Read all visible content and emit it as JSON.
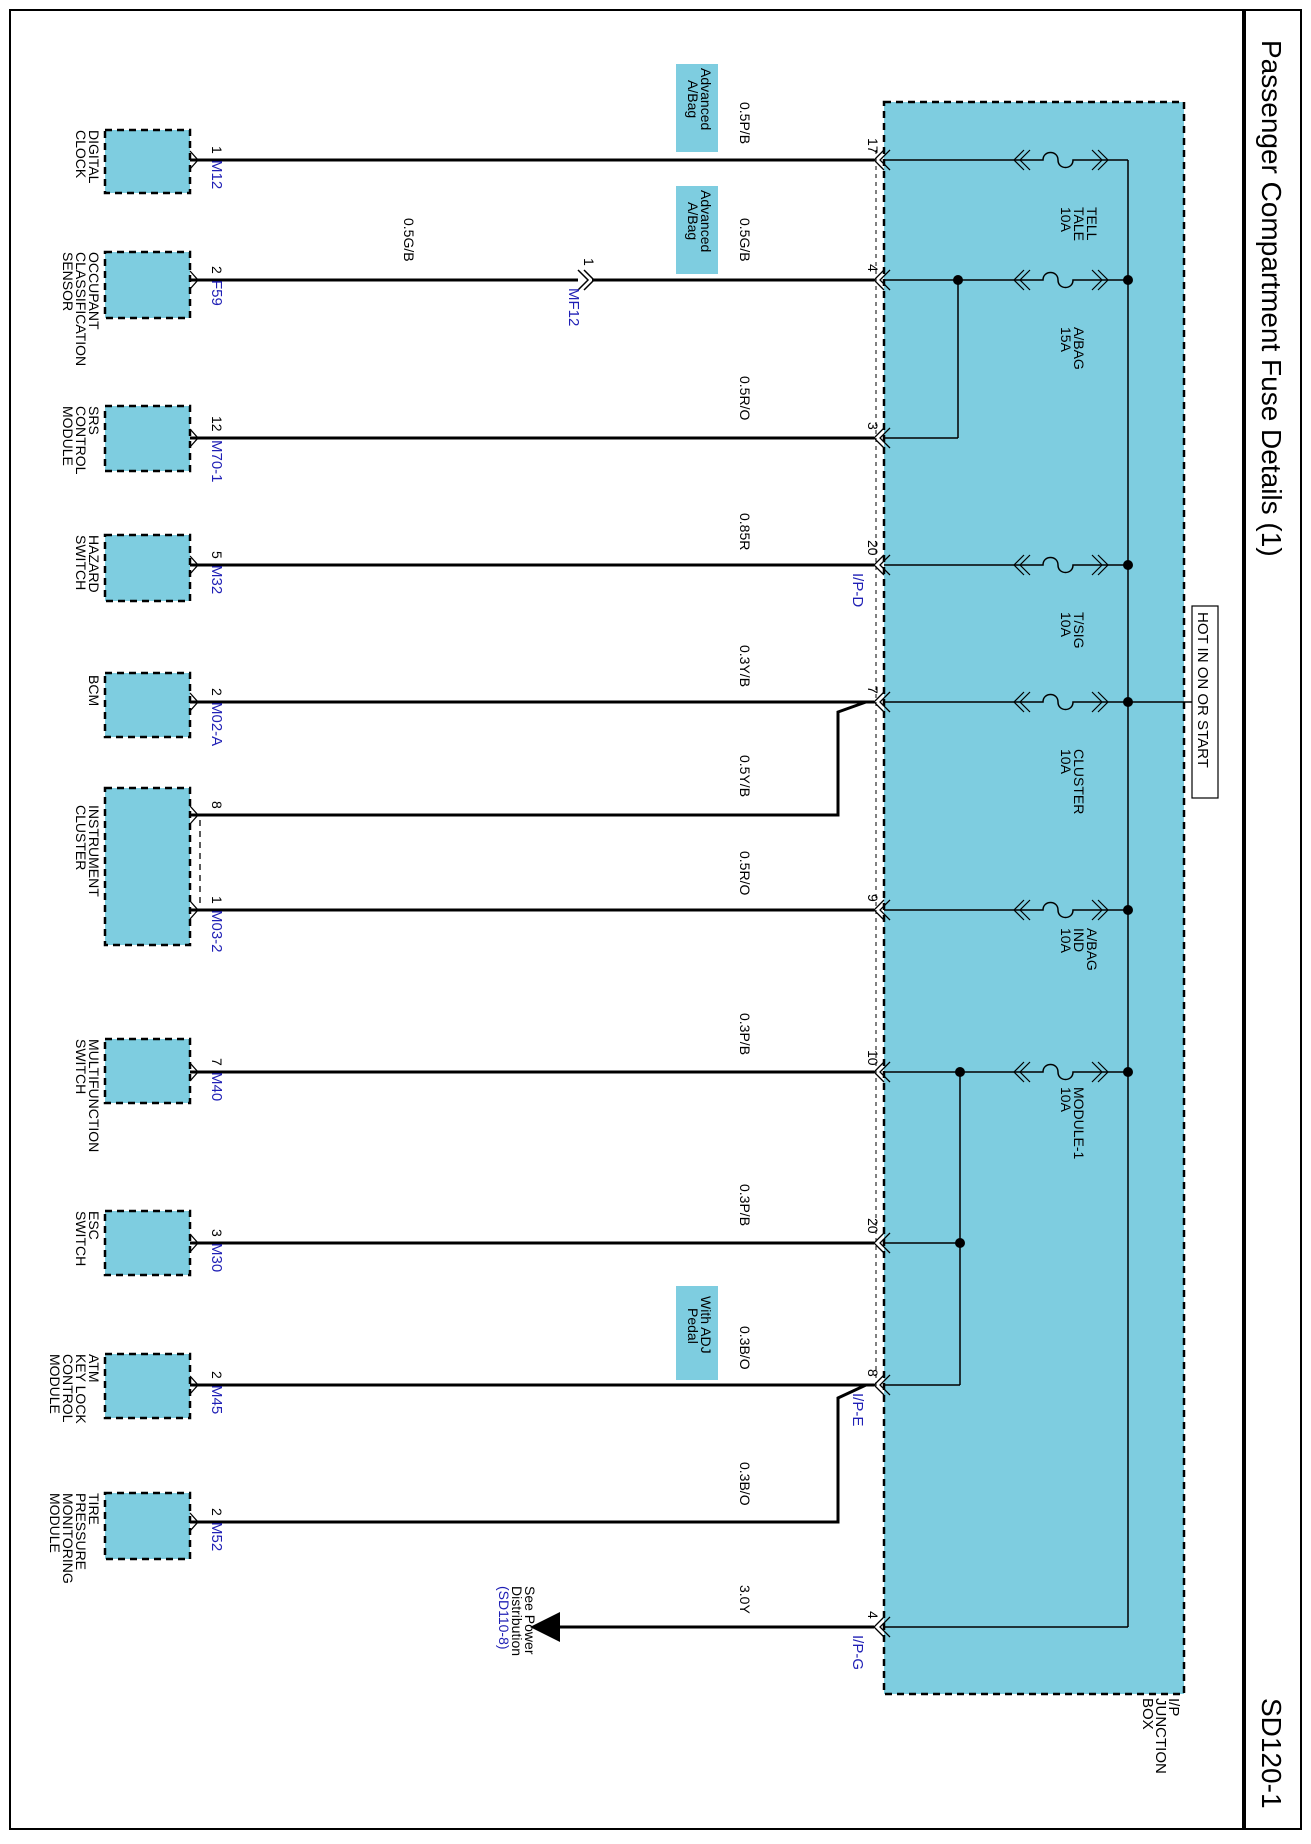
{
  "header": {
    "title": "Passenger Compartment Fuse Details (1)",
    "page_code": "SD120-1"
  },
  "hot_label": "HOT IN ON OR START",
  "junction_box": {
    "lines": [
      "I/P",
      "JUNCTION",
      "BOX"
    ]
  },
  "power": {
    "lines": [
      "See Power",
      "Distribution",
      "(SD110-8)"
    ]
  },
  "inline_connector": {
    "pin": "1",
    "name": "MF12"
  },
  "fuses": [
    {
      "lines": [
        "TELL",
        "TALE",
        "10A"
      ]
    },
    {
      "lines": [
        "A/BAG",
        "15A"
      ]
    },
    {
      "lines": [
        "T/SIG",
        "10A"
      ]
    },
    {
      "lines": [
        "CLUSTER",
        "10A"
      ]
    },
    {
      "lines": [
        "A/BAG",
        "IND",
        "10A"
      ]
    },
    {
      "lines": [
        "MODULE-1",
        "10A"
      ]
    }
  ],
  "jb_pins": [
    {
      "pin": "17"
    },
    {
      "pin": "4"
    },
    {
      "pin": "3"
    },
    {
      "pin": "20",
      "connector": "I/P-D"
    },
    {
      "pin": "7"
    },
    {
      "pin": "9"
    },
    {
      "pin": "10"
    },
    {
      "pin": "20"
    },
    {
      "pin": "8",
      "connector": "I/P-E"
    },
    {
      "pin": "4",
      "connector": "I/P-G"
    }
  ],
  "wires": [
    {
      "wire": "0.5P/B"
    },
    {
      "wire": "0.5G/B"
    },
    {
      "wire": "0.5G/B"
    },
    {
      "wire": "0.5R/O"
    },
    {
      "wire": "0.85R"
    },
    {
      "wire": "0.3Y/B"
    },
    {
      "wire": "0.5Y/B"
    },
    {
      "wire": "0.5R/O"
    },
    {
      "wire": "0.3P/B"
    },
    {
      "wire": "0.3P/B"
    },
    {
      "wire": "0.3B/O"
    },
    {
      "wire": "0.3B/O"
    },
    {
      "wire": "3.0Y"
    }
  ],
  "options": [
    {
      "lines": [
        "Advanced",
        "A/Bag"
      ]
    },
    {
      "lines": [
        "Advanced",
        "A/Bag"
      ]
    },
    {
      "lines": [
        "With ADJ",
        "Pedal"
      ]
    }
  ],
  "components": [
    {
      "lines": [
        "DIGITAL",
        "CLOCK"
      ]
    },
    {
      "lines": [
        "OCCUPANT",
        "CLASSIFICATION",
        "SENSOR"
      ]
    },
    {
      "lines": [
        "SRS",
        "CONTROL",
        "MODULE"
      ]
    },
    {
      "lines": [
        "HAZARD",
        "SWITCH"
      ]
    },
    {
      "lines": [
        "BCM"
      ]
    },
    {
      "lines": [
        "INSTRUMENT",
        "CLUSTER"
      ]
    },
    {
      "lines": [
        "MULTIFUNCTION",
        "SWITCH"
      ]
    },
    {
      "lines": [
        "ESC",
        "SWITCH"
      ]
    },
    {
      "lines": [
        "ATM",
        "KEY LOCK",
        "CONTROL",
        "MODULE"
      ]
    },
    {
      "lines": [
        "TIRE",
        "PRESSURE",
        "MONITORING",
        "MODULE"
      ]
    }
  ],
  "comp_pins": [
    {
      "pin": "1",
      "connector": "M12"
    },
    {
      "pin": "2",
      "connector": "F59"
    },
    {
      "pin": "12",
      "connector": "M70-1"
    },
    {
      "pin": "5",
      "connector": "M32"
    },
    {
      "pin": "2",
      "connector": "M02-A"
    },
    {
      "pin": "8",
      "connector": ""
    },
    {
      "pin": "1",
      "connector": "M03-2"
    },
    {
      "pin": "7",
      "connector": "M40"
    },
    {
      "pin": "3",
      "connector": "M30"
    },
    {
      "pin": "2",
      "connector": "M45"
    },
    {
      "pin": "2",
      "connector": "M52"
    }
  ],
  "colors": {
    "fill": "#7ecde0",
    "line": "#000000",
    "connector_text": "#1f1fb5",
    "background": "#ffffff"
  }
}
